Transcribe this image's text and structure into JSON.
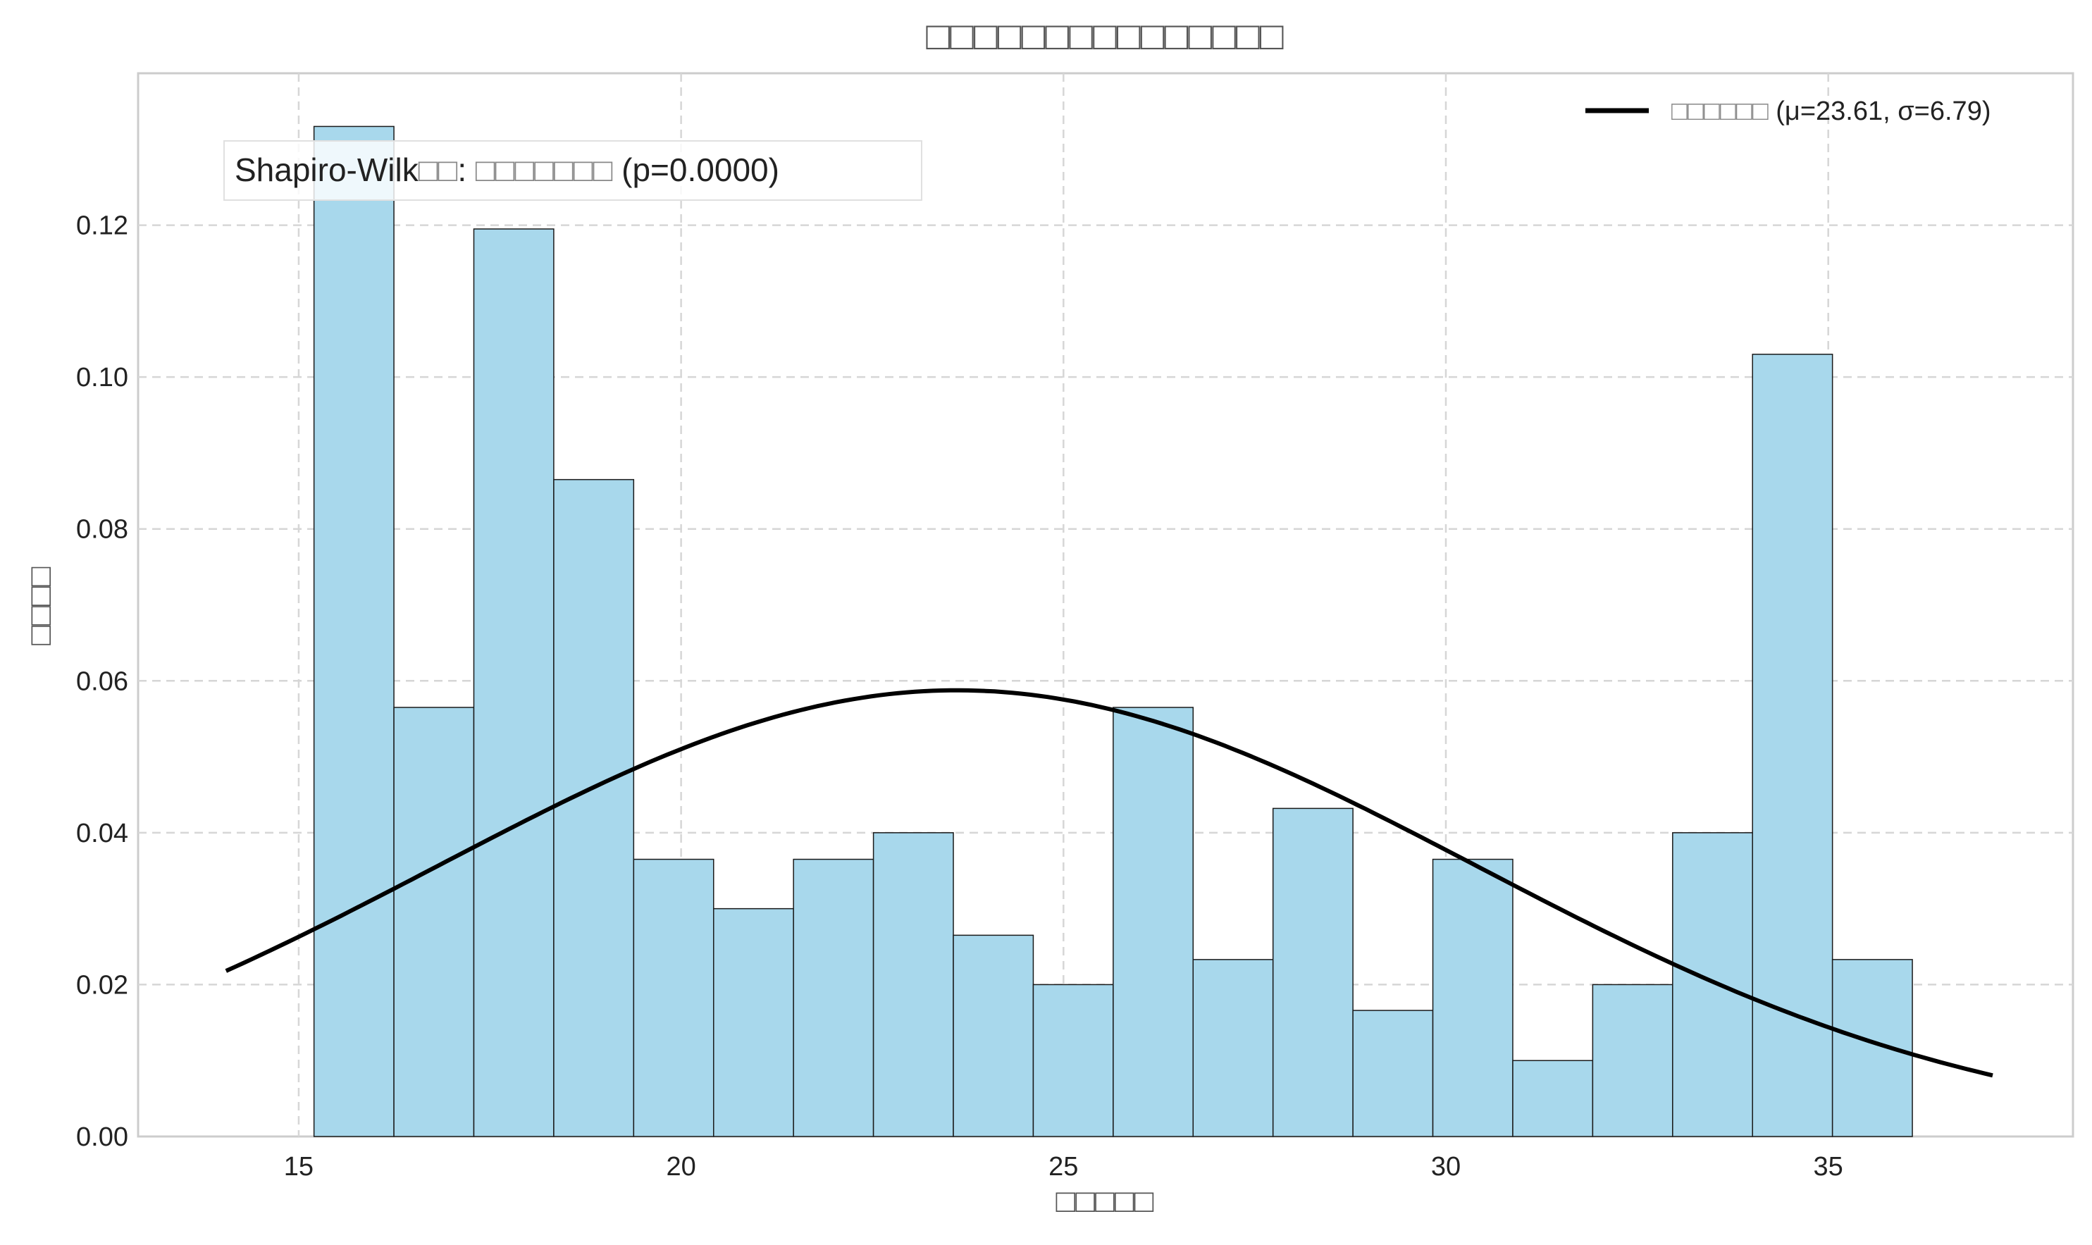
{
  "chart_data": {
    "type": "bar",
    "title": "□□□□□□□□□□□□□□□",
    "xlabel": "□□□□□",
    "ylabel": "□□□□",
    "xlim": [
      12.9,
      38.2
    ],
    "ylim": [
      0.0,
      0.14
    ],
    "xticks": [
      15,
      20,
      25,
      30,
      35
    ],
    "yticks": [
      0.0,
      0.02,
      0.04,
      0.06,
      0.08,
      0.1,
      0.12
    ],
    "ytick_labels": [
      "0.00",
      "0.02",
      "0.04",
      "0.06",
      "0.08",
      "0.10",
      "0.12"
    ],
    "grid": true,
    "legend_position": "top-right",
    "bins": {
      "start": 15.2,
      "width": 1.045,
      "values": [
        0.133,
        0.0565,
        0.1195,
        0.0865,
        0.0365,
        0.03,
        0.0365,
        0.04,
        0.0265,
        0.02,
        0.0565,
        0.0233,
        0.0432,
        0.0166,
        0.0365,
        0.01,
        0.02,
        0.04,
        0.103,
        0.0233
      ]
    },
    "series": [
      {
        "name": "□□□□□□ (μ=23.61, σ=6.79)",
        "type": "line",
        "distribution": "normal",
        "mu": 23.61,
        "sigma": 6.79,
        "x_range": [
          14.05,
          37.15
        ]
      }
    ],
    "legend": {
      "cjk": "□□□□□□",
      "params": " (μ=23.61, σ=6.79)"
    },
    "annotation": {
      "prefix": "Shapiro-Wilk",
      "cjk1": "□□",
      "mid": ": ",
      "cjk2": "□□□□□□□",
      "suffix": " (p=0.0000)"
    },
    "colors": {
      "bar_fill": "#a8d8ec",
      "bar_edge": "#1a1a1a",
      "curve": "#000000",
      "grid": "#d6d6d6",
      "axes_frame": "#cccccc"
    }
  }
}
